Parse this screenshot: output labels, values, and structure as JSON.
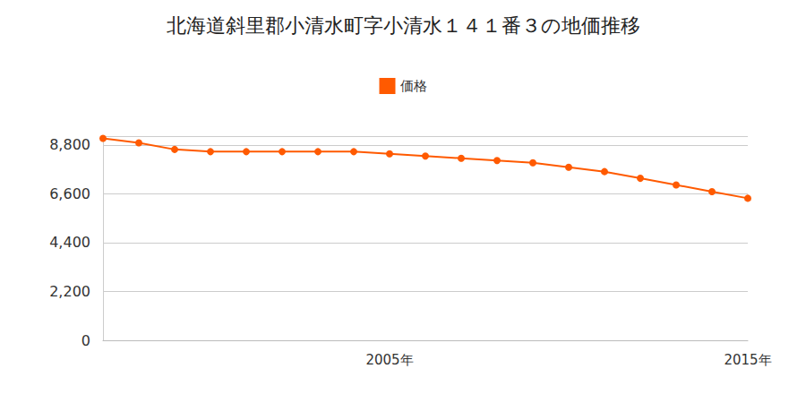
{
  "chart_data": {
    "type": "line",
    "title": "北海道斜里郡小清水町字小清水１４１番３の地価推移",
    "categories": [
      null,
      null,
      null,
      null,
      null,
      null,
      null,
      null,
      "2005年",
      null,
      null,
      null,
      null,
      null,
      null,
      null,
      null,
      null,
      "2015年"
    ],
    "series": [
      {
        "name": "価格",
        "color": "#ff5a00",
        "marker": "circle",
        "values": [
          9100,
          8900,
          8600,
          8500,
          8500,
          8500,
          8500,
          8500,
          8400,
          8300,
          8200,
          8100,
          8000,
          7800,
          7600,
          7300,
          7000,
          6700,
          6400
        ]
      }
    ],
    "ylim": [
      0,
      9200
    ],
    "yticks": [
      0,
      {
        "value": 2200,
        "label": "2,200"
      },
      {
        "value": 4400,
        "label": "4,400"
      },
      {
        "value": 6600,
        "label": "6,600"
      },
      {
        "value": 8800,
        "label": "8,800"
      }
    ],
    "grid": true,
    "legend": "top"
  }
}
